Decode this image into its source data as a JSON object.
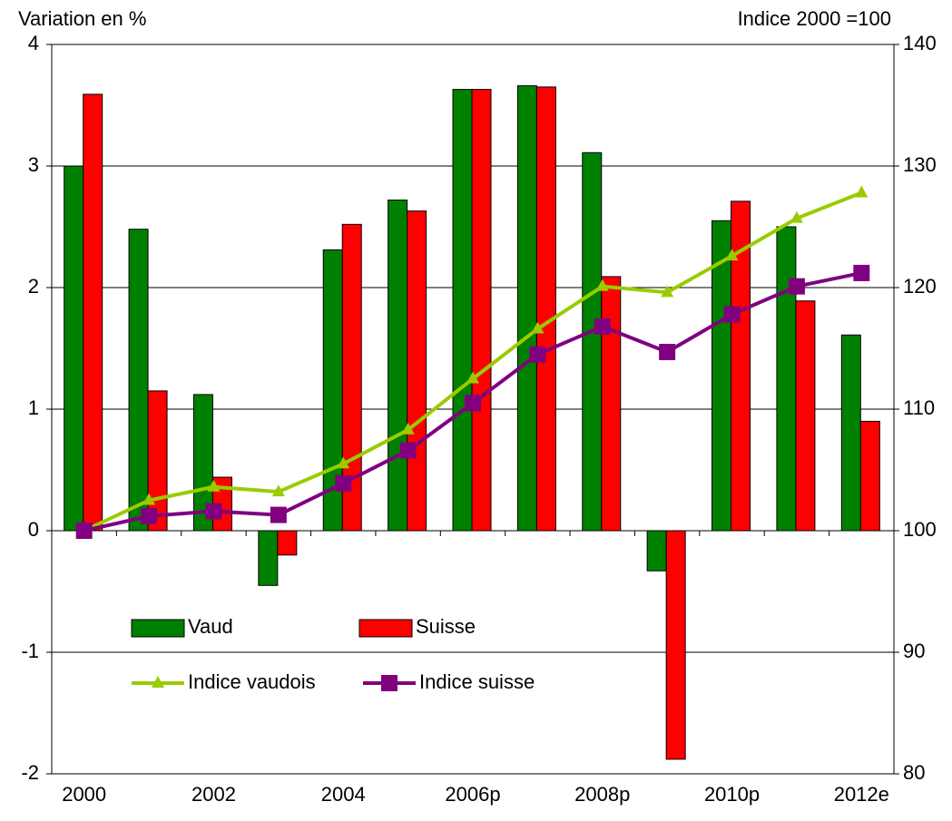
{
  "chart_data": {
    "type": "bar",
    "ylabel": "Variation en %",
    "y2label": "Indice 2000 =100",
    "categories": [
      "2000",
      null,
      "2002",
      null,
      "2004",
      null,
      "2006p",
      null,
      "2008p",
      null,
      "2010p",
      null,
      "2012e"
    ],
    "series": [
      {
        "name": "Vaud",
        "type": "bar",
        "color": "#008000",
        "values": [
          3.0,
          2.48,
          1.12,
          -0.45,
          2.31,
          2.72,
          3.63,
          3.66,
          3.11,
          -0.33,
          2.55,
          2.5,
          1.61
        ]
      },
      {
        "name": "Suisse",
        "type": "bar",
        "color": "#ff0000",
        "values": [
          3.59,
          1.15,
          0.44,
          -0.2,
          2.52,
          2.63,
          3.63,
          3.65,
          2.09,
          -1.88,
          2.71,
          1.89,
          0.9
        ]
      },
      {
        "name": "Indice vaudois",
        "type": "line",
        "axis": "y2",
        "marker": "triangle",
        "color": "#99cc00",
        "values": [
          100,
          102.5,
          103.6,
          103.2,
          105.5,
          108.3,
          112.5,
          116.6,
          120.1,
          119.6,
          122.6,
          125.7,
          127.8
        ]
      },
      {
        "name": "Indice suisse",
        "type": "line",
        "axis": "y2",
        "marker": "square",
        "color": "#800080",
        "values": [
          100,
          101.2,
          101.6,
          101.3,
          103.9,
          106.6,
          110.5,
          114.5,
          116.8,
          114.7,
          117.8,
          120.1,
          121.2
        ]
      }
    ],
    "ylim": [
      -2,
      4
    ],
    "yticks": [
      -2,
      -1,
      0,
      1,
      2,
      3,
      4
    ],
    "y2lim": [
      80,
      140
    ],
    "y2ticks": [
      80,
      90,
      100,
      110,
      120,
      130,
      140
    ],
    "grid": true
  }
}
